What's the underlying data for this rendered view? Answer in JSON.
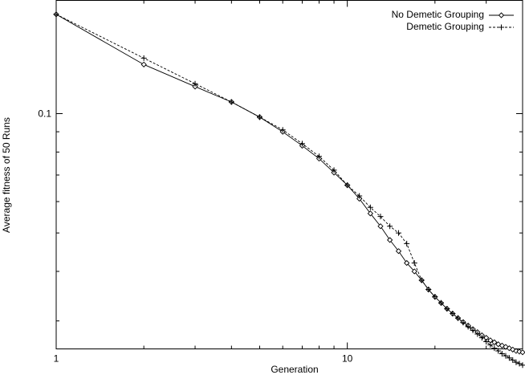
{
  "chart_data": {
    "type": "line",
    "xlabel": "Generation",
    "ylabel": "Average fitness of 50 Runs",
    "xscale": "log",
    "yscale": "log",
    "xlim": [
      1,
      40
    ],
    "ylim": [
      0.0255,
      0.193
    ],
    "xticks": [
      {
        "value": 1,
        "label": "1"
      },
      {
        "value": 10,
        "label": "10"
      }
    ],
    "yticks": [
      {
        "value": 0.1,
        "label": "0.1"
      }
    ],
    "grid": false,
    "legend_position": "top-right",
    "series": [
      {
        "name": "No Demetic Grouping",
        "marker": "diamond",
        "line_style": "solid",
        "points": [
          [
            1,
            0.178
          ],
          [
            2,
            0.133
          ],
          [
            3,
            0.117
          ],
          [
            4,
            0.107
          ],
          [
            5,
            0.098
          ],
          [
            6,
            0.09
          ],
          [
            7,
            0.083
          ],
          [
            8,
            0.077
          ],
          [
            9,
            0.071
          ],
          [
            10,
            0.066
          ],
          [
            11,
            0.061
          ],
          [
            12,
            0.056
          ],
          [
            13,
            0.052
          ],
          [
            14,
            0.048
          ],
          [
            15,
            0.045
          ],
          [
            16,
            0.042
          ],
          [
            17,
            0.04
          ],
          [
            18,
            0.038
          ],
          [
            19,
            0.036
          ],
          [
            20,
            0.0345
          ],
          [
            21,
            0.0333
          ],
          [
            22,
            0.0322
          ],
          [
            23,
            0.0313
          ],
          [
            24,
            0.0305
          ],
          [
            25,
            0.0298
          ],
          [
            26,
            0.0292
          ],
          [
            27,
            0.0286
          ],
          [
            28,
            0.0281
          ],
          [
            29,
            0.0276
          ],
          [
            30,
            0.0272
          ],
          [
            31,
            0.0268
          ],
          [
            32,
            0.0265
          ],
          [
            33,
            0.0262
          ],
          [
            34,
            0.026
          ],
          [
            35,
            0.0258
          ],
          [
            36,
            0.0256
          ],
          [
            37,
            0.0254
          ],
          [
            38,
            0.0252
          ],
          [
            39,
            0.0251
          ],
          [
            40,
            0.025
          ]
        ]
      },
      {
        "name": "Demetic Grouping",
        "marker": "plus",
        "line_style": "dashed",
        "points": [
          [
            1,
            0.178
          ],
          [
            2,
            0.138
          ],
          [
            3,
            0.119
          ],
          [
            4,
            0.107
          ],
          [
            5,
            0.098
          ],
          [
            6,
            0.091
          ],
          [
            7,
            0.084
          ],
          [
            8,
            0.078
          ],
          [
            9,
            0.072
          ],
          [
            10,
            0.066
          ],
          [
            11,
            0.062
          ],
          [
            12,
            0.058
          ],
          [
            13,
            0.055
          ],
          [
            14,
            0.052
          ],
          [
            15,
            0.05
          ],
          [
            16,
            0.047
          ],
          [
            17,
            0.042
          ],
          [
            18,
            0.038
          ],
          [
            19,
            0.036
          ],
          [
            20,
            0.0345
          ],
          [
            21,
            0.0333
          ],
          [
            22,
            0.0322
          ],
          [
            23,
            0.0313
          ],
          [
            24,
            0.0305
          ],
          [
            25,
            0.0297
          ],
          [
            26,
            0.029
          ],
          [
            27,
            0.0284
          ],
          [
            28,
            0.0278
          ],
          [
            29,
            0.0272
          ],
          [
            30,
            0.0266
          ],
          [
            31,
            0.0261
          ],
          [
            32,
            0.0256
          ],
          [
            33,
            0.0252
          ],
          [
            34,
            0.0248
          ],
          [
            35,
            0.0245
          ],
          [
            36,
            0.0242
          ],
          [
            37,
            0.0239
          ],
          [
            38,
            0.0236
          ],
          [
            39,
            0.0234
          ],
          [
            40,
            0.0232
          ]
        ]
      }
    ]
  }
}
